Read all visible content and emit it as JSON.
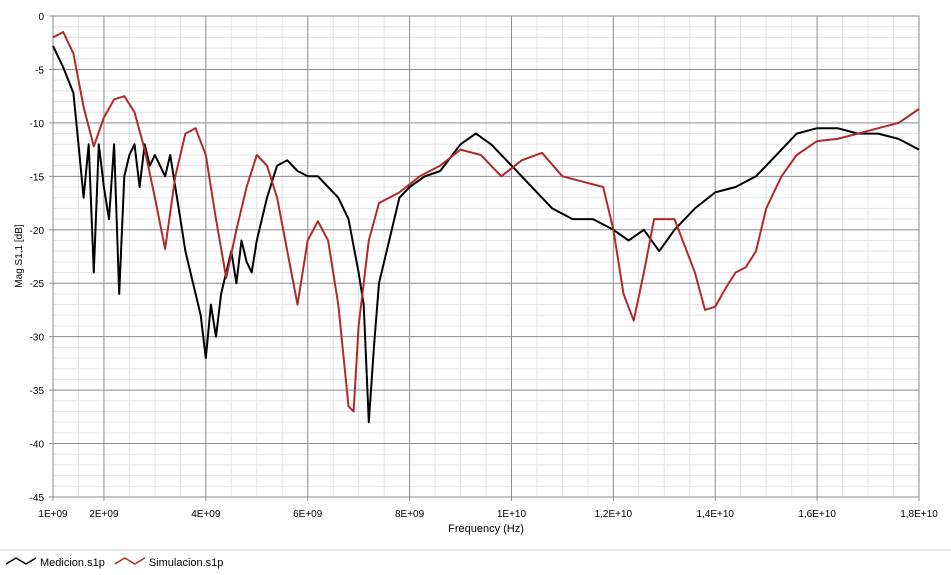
{
  "chart_data": {
    "type": "line",
    "xlabel": "Frequency (Hz)",
    "ylabel": "Mag S1,1 [dB]",
    "xlim": [
      1000000000,
      18000000000
    ],
    "ylim": [
      -45,
      0
    ],
    "x_ticks": [
      {
        "value": 1000000000,
        "label": "1E+09"
      },
      {
        "value": 2000000000,
        "label": "2E+09"
      },
      {
        "value": 4000000000,
        "label": "4E+09"
      },
      {
        "value": 6000000000,
        "label": "6E+09"
      },
      {
        "value": 8000000000,
        "label": "8E+09"
      },
      {
        "value": 10000000000,
        "label": "1E+10"
      },
      {
        "value": 12000000000,
        "label": "1,2E+10"
      },
      {
        "value": 14000000000,
        "label": "1,4E+10"
      },
      {
        "value": 16000000000,
        "label": "1,6E+10"
      },
      {
        "value": 18000000000,
        "label": "1,8E+10"
      }
    ],
    "y_ticks": [
      {
        "value": 0,
        "label": "0"
      },
      {
        "value": -5,
        "label": "-5"
      },
      {
        "value": -10,
        "label": "-10"
      },
      {
        "value": -15,
        "label": "-15"
      },
      {
        "value": -20,
        "label": "-20"
      },
      {
        "value": -25,
        "label": "-25"
      },
      {
        "value": -30,
        "label": "-30"
      },
      {
        "value": -35,
        "label": "-35"
      },
      {
        "value": -40,
        "label": "-40"
      },
      {
        "value": -45,
        "label": "-45"
      }
    ],
    "grid": true,
    "legend_position": "bottom-left",
    "series": [
      {
        "name": "Medicion.s1p",
        "color": "#000000",
        "x": [
          1000000000.0,
          1200000000.0,
          1400000000.0,
          1500000000.0,
          1600000000.0,
          1700000000.0,
          1800000000.0,
          1900000000.0,
          2000000000.0,
          2100000000.0,
          2200000000.0,
          2300000000.0,
          2400000000.0,
          2500000000.0,
          2600000000.0,
          2700000000.0,
          2800000000.0,
          2900000000.0,
          3000000000.0,
          3100000000.0,
          3200000000.0,
          3300000000.0,
          3400000000.0,
          3500000000.0,
          3600000000.0,
          3700000000.0,
          3800000000.0,
          3900000000.0,
          4000000000.0,
          4100000000.0,
          4200000000.0,
          4300000000.0,
          4400000000.0,
          4500000000.0,
          4600000000.0,
          4700000000.0,
          4800000000.0,
          4900000000.0,
          5000000000.0,
          5200000000.0,
          5400000000.0,
          5600000000.0,
          5800000000.0,
          6000000000.0,
          6200000000.0,
          6400000000.0,
          6600000000.0,
          6800000000.0,
          7000000000.0,
          7100000000.0,
          7200000000.0,
          7300000000.0,
          7400000000.0,
          7600000000.0,
          7800000000.0,
          8000000000.0,
          8300000000.0,
          8600000000.0,
          9000000000.0,
          9300000000.0,
          9600000000.0,
          10000000000.0,
          10400000000.0,
          10800000000.0,
          11200000000.0,
          11600000000.0,
          12000000000.0,
          12300000000.0,
          12600000000.0,
          12900000000.0,
          13200000000.0,
          13600000000.0,
          14000000000.0,
          14400000000.0,
          14800000000.0,
          15200000000.0,
          15600000000.0,
          16000000000.0,
          16400000000.0,
          16800000000.0,
          17200000000.0,
          17600000000.0,
          18000000000.0
        ],
        "y": [
          -2.8,
          -4.8,
          -7.2,
          -12,
          -17,
          -12,
          -24,
          -12,
          -16,
          -19,
          -12,
          -26,
          -15,
          -13,
          -12,
          -16,
          -12,
          -14,
          -13,
          -14,
          -15,
          -13,
          -16,
          -19,
          -22,
          -24,
          -26,
          -28,
          -32,
          -27,
          -30,
          -26,
          -24,
          -22,
          -25,
          -21,
          -23,
          -24,
          -21,
          -17,
          -14,
          -13.5,
          -14.5,
          -15,
          -15,
          -16,
          -17,
          -19,
          -24,
          -27,
          -38,
          -31,
          -25,
          -21,
          -17,
          -16,
          -15,
          -14.5,
          -12,
          -11,
          -12,
          -14,
          -16,
          -18,
          -19,
          -19,
          -20,
          -21,
          -20,
          -22,
          -20,
          -18,
          -16.5,
          -16,
          -15,
          -13,
          -11,
          -10.5,
          -10.5,
          -11,
          -11,
          -11.5,
          -12.5
        ]
      },
      {
        "name": "Simulacion.s1p",
        "color": "#b02a2a",
        "x": [
          1000000000.0,
          1200000000.0,
          1400000000.0,
          1600000000.0,
          1800000000.0,
          2000000000.0,
          2200000000.0,
          2400000000.0,
          2600000000.0,
          2800000000.0,
          3000000000.0,
          3200000000.0,
          3400000000.0,
          3600000000.0,
          3800000000.0,
          4000000000.0,
          4200000000.0,
          4400000000.0,
          4600000000.0,
          4800000000.0,
          5000000000.0,
          5200000000.0,
          5400000000.0,
          5600000000.0,
          5800000000.0,
          6000000000.0,
          6200000000.0,
          6400000000.0,
          6600000000.0,
          6800000000.0,
          6900000000.0,
          7000000000.0,
          7200000000.0,
          7400000000.0,
          7800000000.0,
          8200000000.0,
          8600000000.0,
          9000000000.0,
          9400000000.0,
          9800000000.0,
          10200000000.0,
          10600000000.0,
          11000000000.0,
          11400000000.0,
          11800000000.0,
          12000000000.0,
          12200000000.0,
          12400000000.0,
          12600000000.0,
          12800000000.0,
          13200000000.0,
          13600000000.0,
          13800000000.0,
          14000000000.0,
          14200000000.0,
          14400000000.0,
          14600000000.0,
          14800000000.0,
          15000000000.0,
          15300000000.0,
          15600000000.0,
          16000000000.0,
          16400000000.0,
          16800000000.0,
          17200000000.0,
          17600000000.0,
          18000000000.0
        ],
        "y": [
          -2.0,
          -1.5,
          -3.5,
          -8.5,
          -12.2,
          -9.5,
          -7.8,
          -7.5,
          -9,
          -12.5,
          -17,
          -21.8,
          -15,
          -11,
          -10.5,
          -13,
          -19,
          -24.5,
          -20,
          -16,
          -13,
          -14,
          -17,
          -22,
          -27,
          -21,
          -19.2,
          -21,
          -27,
          -36.5,
          -37,
          -29,
          -21,
          -17.5,
          -16.5,
          -15,
          -14,
          -12.5,
          -13,
          -15,
          -13.5,
          -12.8,
          -15,
          -15.5,
          -16,
          -20,
          -26,
          -28.5,
          -24,
          -19,
          -19,
          -24,
          -27.5,
          -27.2,
          -25.5,
          -24,
          -23.5,
          -22,
          -18,
          -15,
          -13,
          -11.7,
          -11.5,
          -11,
          -10.5,
          -10,
          -8.7
        ]
      }
    ]
  }
}
